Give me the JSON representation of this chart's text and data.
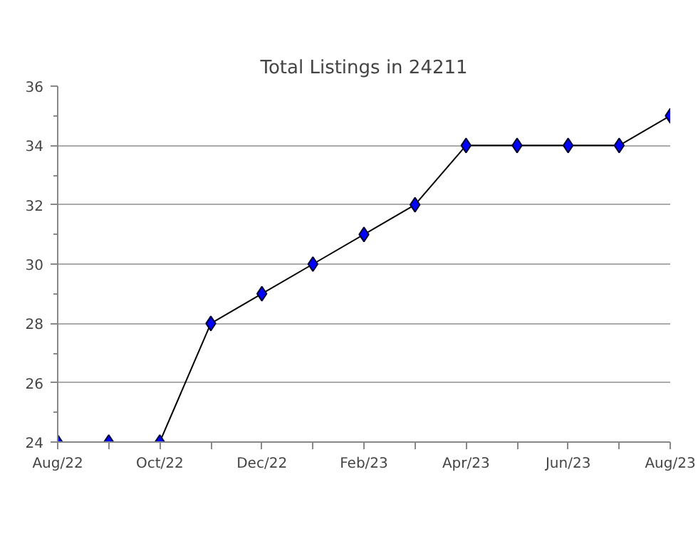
{
  "chart_data": {
    "type": "line",
    "title": "Total Listings in 24211",
    "categories": [
      "Aug/22",
      null,
      "Oct/22",
      null,
      "Dec/22",
      null,
      "Feb/23",
      null,
      "Apr/23",
      null,
      "Jun/23",
      null,
      "Aug/23"
    ],
    "series": [
      {
        "color": "#0000ff",
        "values": [
          24,
          24,
          24,
          28,
          29,
          30,
          31,
          32,
          34,
          34,
          34,
          34,
          35
        ]
      }
    ],
    "ylim": [
      24,
      36
    ],
    "yticks": [
      24,
      26,
      28,
      30,
      32,
      34,
      36
    ],
    "grid": "y",
    "marker": "diamond"
  }
}
